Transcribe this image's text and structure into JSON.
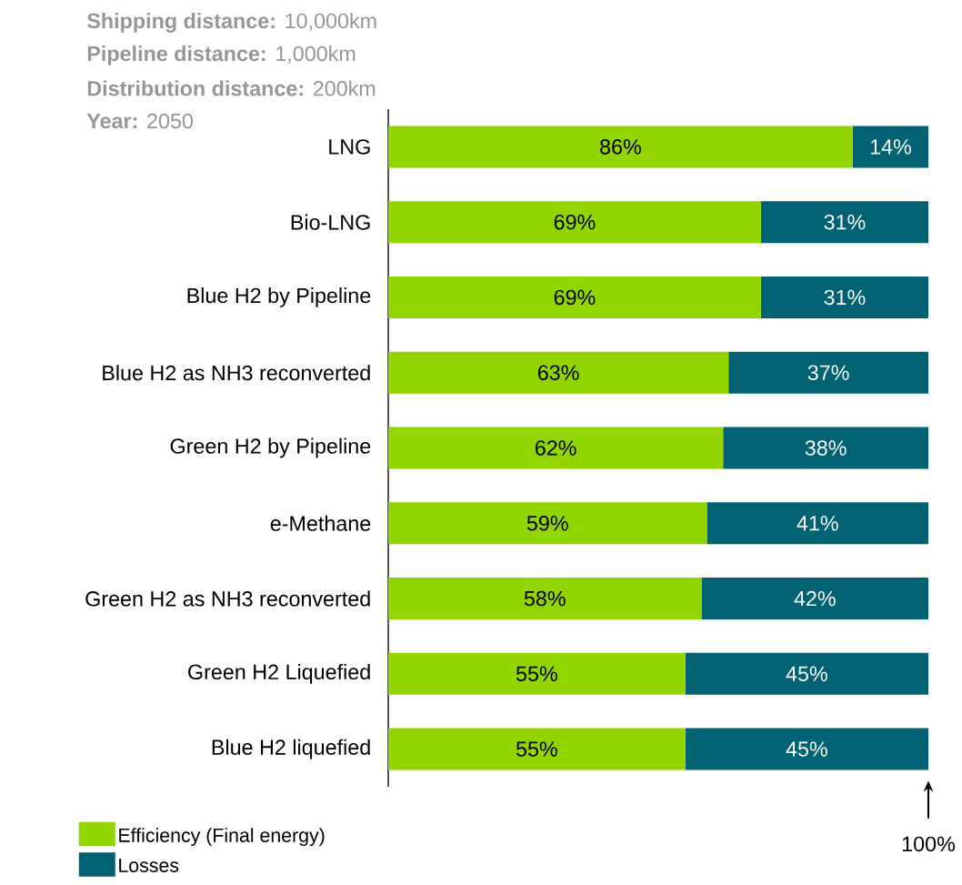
{
  "chart_data": {
    "type": "bar",
    "orientation": "horizontal",
    "stacked": true,
    "categories": [
      "LNG",
      "Bio-LNG",
      "Blue H2 by Pipeline",
      "Blue H2 as NH3 reconverted",
      "Green H2 by Pipeline",
      "e-Methane",
      "Green H2 as NH3 reconverted",
      "Green H2 Liquefied",
      "Blue H2 liquefied"
    ],
    "series": [
      {
        "name": "Efficiency (Final energy)",
        "color": "#92d400",
        "values": [
          86,
          69,
          69,
          63,
          62,
          59,
          58,
          55,
          55
        ],
        "value_labels": [
          "86%",
          "69%",
          "69%",
          "63%",
          "62%",
          "59%",
          "58%",
          "55%",
          "55%"
        ]
      },
      {
        "name": "Losses",
        "color": "#006272",
        "values": [
          14,
          31,
          31,
          37,
          38,
          41,
          42,
          45,
          45
        ],
        "value_labels": [
          "14%",
          "31%",
          "31%",
          "37%",
          "38%",
          "41%",
          "42%",
          "45%",
          "45%"
        ]
      }
    ],
    "xlim": [
      0,
      100
    ],
    "tick_labels": "y",
    "legend": "bottom left",
    "annotations": [
      "**Shipping distance:** 10,000km",
      "**Pipeline distance:** 1,000km",
      "**Distribution distance:** 200km",
      "**Year:** 2050",
      {
        "text": "100%",
        "x": 100
      }
    ]
  }
}
